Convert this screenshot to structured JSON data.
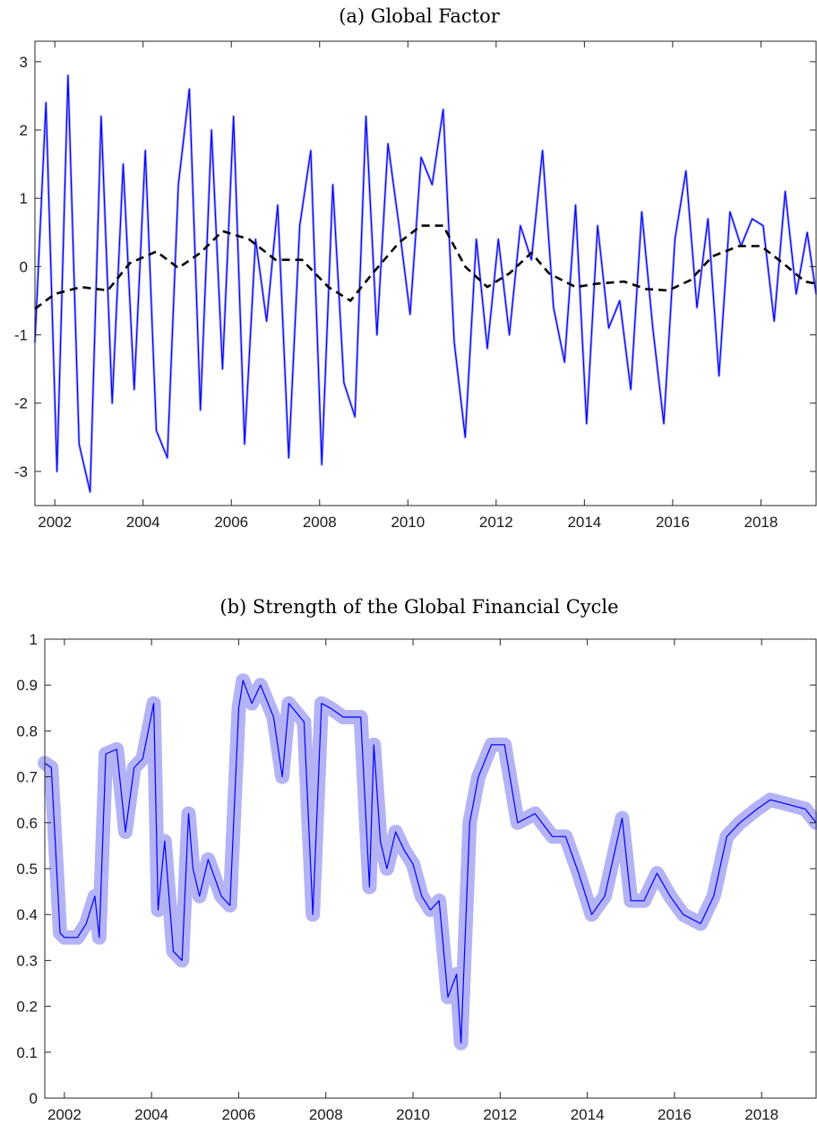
{
  "chart_data": [
    {
      "type": "line",
      "title": "(a) Global Factor",
      "xlabel": "",
      "ylabel": "",
      "xlim": [
        2001.55,
        2019.25
      ],
      "ylim": [
        -3.5,
        3.3
      ],
      "x_ticks": [
        2002,
        2004,
        2006,
        2008,
        2010,
        2012,
        2014,
        2016,
        2018
      ],
      "y_ticks": [
        -3,
        -2,
        -1,
        0,
        1,
        2,
        3
      ],
      "grid": false,
      "legend": "none",
      "series": [
        {
          "style": "solid",
          "color": "#0000ff",
          "band_color": "#b3b3f5",
          "x": [
            2001.55,
            2001.8,
            2002.05,
            2002.3,
            2002.55,
            2002.8,
            2003.05,
            2003.3,
            2003.55,
            2003.8,
            2004.05,
            2004.3,
            2004.55,
            2004.8,
            2005.05,
            2005.3,
            2005.55,
            2005.8,
            2006.05,
            2006.3,
            2006.55,
            2006.8,
            2007.05,
            2007.3,
            2007.55,
            2007.8,
            2008.05,
            2008.3,
            2008.55,
            2008.8,
            2009.05,
            2009.3,
            2009.55,
            2009.8,
            2010.05,
            2010.3,
            2010.55,
            2010.8,
            2011.05,
            2011.3,
            2011.55,
            2011.8,
            2012.05,
            2012.3,
            2012.55,
            2012.8,
            2013.05,
            2013.3,
            2013.55,
            2013.8,
            2014.05,
            2014.3,
            2014.55,
            2014.8,
            2015.05,
            2015.3,
            2015.55,
            2015.8,
            2016.05,
            2016.3,
            2016.55,
            2016.8,
            2017.05,
            2017.3,
            2017.55,
            2017.8,
            2018.05,
            2018.3,
            2018.55,
            2018.8,
            2019.05,
            2019.25
          ],
          "y": [
            -1.1,
            2.4,
            -3.0,
            2.8,
            -2.6,
            -3.3,
            2.2,
            -2.0,
            1.5,
            -1.8,
            1.7,
            -2.4,
            -2.8,
            1.2,
            2.6,
            -2.1,
            2.0,
            -1.5,
            2.2,
            -2.6,
            0.4,
            -0.8,
            0.9,
            -2.8,
            0.6,
            1.7,
            -2.9,
            1.2,
            -1.7,
            -2.2,
            2.2,
            -1.0,
            1.8,
            0.6,
            -0.7,
            1.6,
            1.2,
            2.3,
            -1.1,
            -2.5,
            0.4,
            -1.2,
            0.4,
            -1.0,
            0.6,
            0.1,
            1.7,
            -0.6,
            -1.4,
            0.9,
            -2.3,
            0.6,
            -0.9,
            -0.5,
            -1.8,
            0.8,
            -0.9,
            -2.3,
            0.4,
            1.4,
            -0.6,
            0.7,
            -1.6,
            0.8,
            0.3,
            0.7,
            0.6,
            -0.8,
            1.1,
            -0.4,
            0.5,
            -0.4
          ]
        },
        {
          "style": "dashed",
          "color": "#000000",
          "x": [
            2001.55,
            2002.0,
            2002.6,
            2003.2,
            2003.7,
            2004.3,
            2004.8,
            2005.3,
            2005.8,
            2006.4,
            2007.0,
            2007.6,
            2008.2,
            2008.7,
            2009.2,
            2009.8,
            2010.3,
            2010.8,
            2011.3,
            2011.8,
            2012.3,
            2012.8,
            2013.2,
            2013.8,
            2014.3,
            2014.9,
            2015.4,
            2015.9,
            2016.4,
            2016.9,
            2017.5,
            2018.0,
            2018.5,
            2019.0,
            2019.25
          ],
          "y": [
            -0.62,
            -0.4,
            -0.3,
            -0.35,
            0.05,
            0.22,
            -0.02,
            0.2,
            0.52,
            0.4,
            0.1,
            0.1,
            -0.3,
            -0.5,
            -0.1,
            0.35,
            0.6,
            0.6,
            0.0,
            -0.3,
            -0.1,
            0.2,
            -0.1,
            -0.3,
            -0.25,
            -0.22,
            -0.33,
            -0.35,
            -0.2,
            0.15,
            0.3,
            0.3,
            0.05,
            -0.22,
            -0.25
          ]
        }
      ]
    },
    {
      "type": "area",
      "title": "(b) Strength of the Global Financial Cycle",
      "xlabel": "",
      "ylabel": "",
      "xlim": [
        2001.55,
        2019.25
      ],
      "ylim": [
        0,
        1
      ],
      "x_ticks": [
        2002,
        2004,
        2006,
        2008,
        2010,
        2012,
        2014,
        2016,
        2018
      ],
      "y_ticks": [
        0,
        0.1,
        0.2,
        0.3,
        0.4,
        0.5,
        0.6,
        0.7,
        0.8,
        0.9,
        1
      ],
      "grid": false,
      "legend": "none",
      "series": [
        {
          "style": "solid",
          "color": "#0000ff",
          "band_color": "#b3b3f5",
          "x": [
            2001.55,
            2001.7,
            2001.9,
            2002.0,
            2002.3,
            2002.5,
            2002.7,
            2002.8,
            2002.95,
            2003.2,
            2003.4,
            2003.6,
            2003.8,
            2004.05,
            2004.15,
            2004.3,
            2004.5,
            2004.7,
            2004.85,
            2004.95,
            2005.1,
            2005.3,
            2005.6,
            2005.8,
            2006.0,
            2006.1,
            2006.3,
            2006.5,
            2006.8,
            2007.0,
            2007.15,
            2007.5,
            2007.7,
            2007.9,
            2008.1,
            2008.4,
            2008.8,
            2009.0,
            2009.1,
            2009.25,
            2009.4,
            2009.6,
            2009.8,
            2010.0,
            2010.2,
            2010.4,
            2010.6,
            2010.8,
            2011.0,
            2011.1,
            2011.3,
            2011.5,
            2011.8,
            2012.1,
            2012.4,
            2012.8,
            2013.2,
            2013.5,
            2013.8,
            2014.1,
            2014.4,
            2014.8,
            2015.0,
            2015.3,
            2015.6,
            2015.9,
            2016.2,
            2016.6,
            2016.9,
            2017.2,
            2017.5,
            2017.9,
            2018.2,
            2018.6,
            2019.0,
            2019.25
          ],
          "y": [
            0.73,
            0.72,
            0.36,
            0.35,
            0.35,
            0.38,
            0.44,
            0.35,
            0.75,
            0.76,
            0.58,
            0.72,
            0.74,
            0.86,
            0.41,
            0.56,
            0.32,
            0.3,
            0.62,
            0.5,
            0.44,
            0.52,
            0.44,
            0.42,
            0.85,
            0.91,
            0.86,
            0.9,
            0.83,
            0.7,
            0.86,
            0.82,
            0.4,
            0.86,
            0.85,
            0.83,
            0.83,
            0.46,
            0.77,
            0.56,
            0.5,
            0.58,
            0.54,
            0.51,
            0.44,
            0.41,
            0.43,
            0.22,
            0.27,
            0.12,
            0.6,
            0.7,
            0.77,
            0.77,
            0.6,
            0.62,
            0.57,
            0.57,
            0.49,
            0.4,
            0.44,
            0.61,
            0.43,
            0.43,
            0.49,
            0.44,
            0.4,
            0.38,
            0.44,
            0.57,
            0.6,
            0.63,
            0.65,
            0.64,
            0.63,
            0.6
          ]
        }
      ]
    }
  ]
}
